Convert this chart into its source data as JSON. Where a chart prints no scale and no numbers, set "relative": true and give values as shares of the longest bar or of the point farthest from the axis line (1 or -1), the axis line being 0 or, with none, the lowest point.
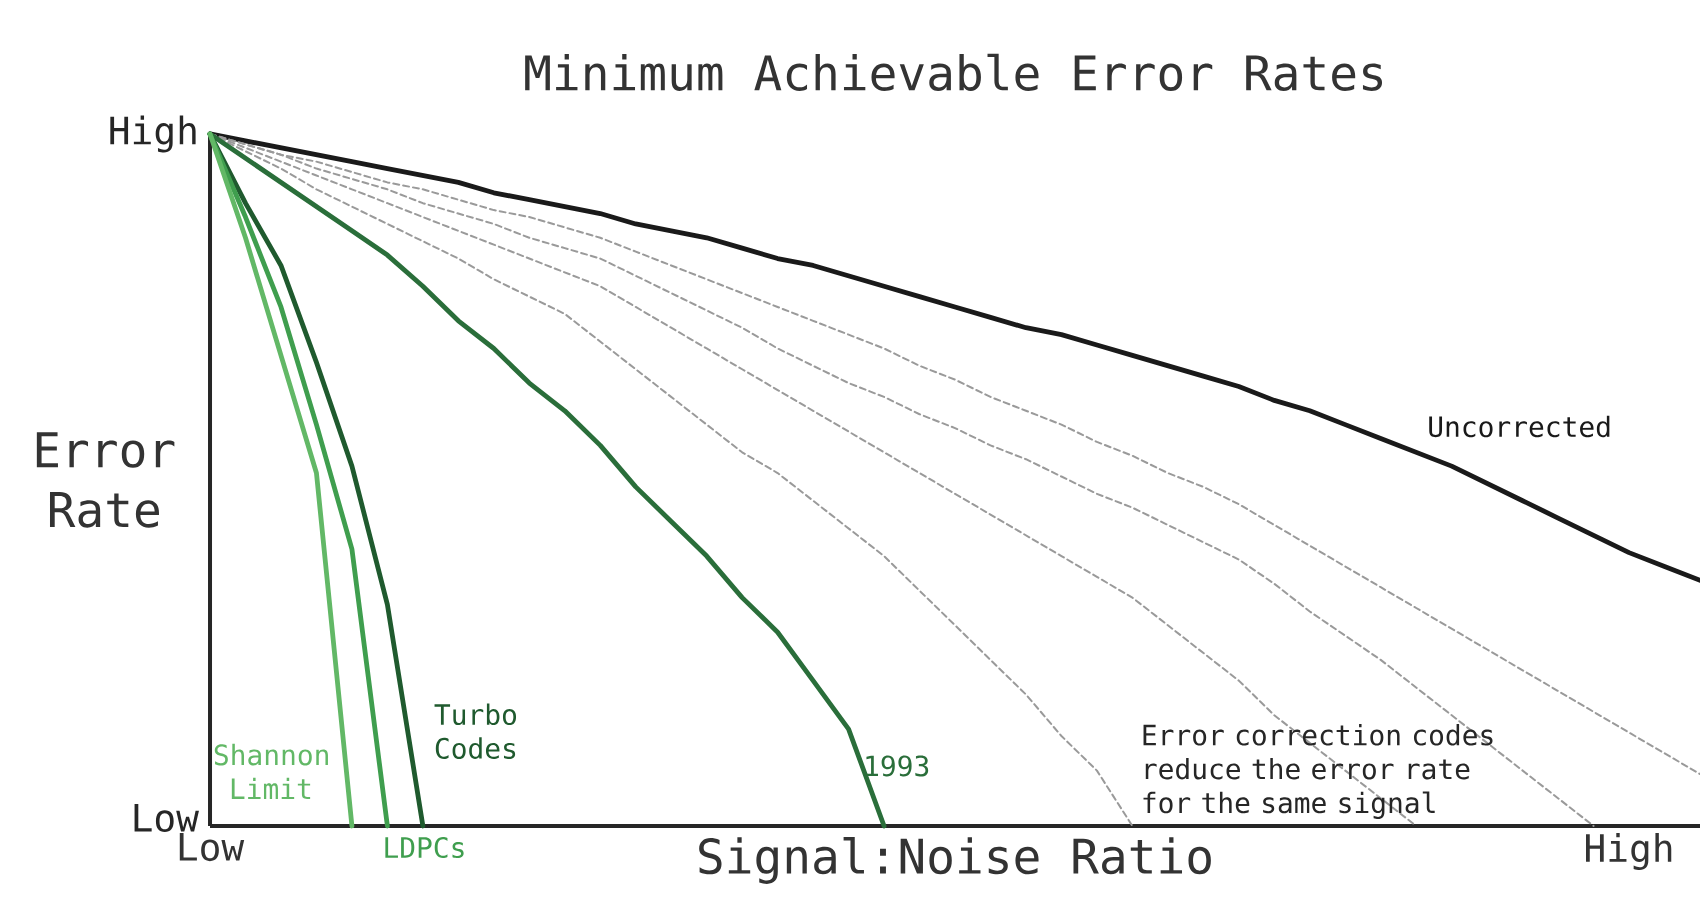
{
  "chart_data": {
    "type": "line",
    "title": "Minimum Achievable Error Rates",
    "xlabel": "Signal:Noise Ratio",
    "ylabel": "Error Rate",
    "relative": true,
    "legend": false,
    "marker": "none",
    "annotations": [
      "High",
      "Low",
      "Error correction codes reduce the error rate for the same signal"
    ],
    "categories": [
      "Low",
      null,
      null,
      null,
      null,
      null,
      null,
      null,
      null,
      null,
      null,
      null,
      null,
      null,
      null,
      null,
      null,
      null,
      null,
      null,
      null,
      null,
      null,
      null,
      null,
      null,
      null,
      null,
      null,
      null,
      null,
      null,
      null,
      null,
      null,
      null,
      null,
      null,
      null,
      null,
      "High",
      null,
      null
    ],
    "series": [
      {
        "name": "Uncorrected",
        "color": "#1a1a1a",
        "line_style": "solid",
        "values": [
          1,
          0.99,
          0.98,
          0.97,
          0.96,
          0.95,
          0.94,
          0.93,
          0.915,
          0.905,
          0.895,
          0.885,
          0.87,
          0.86,
          0.85,
          0.835,
          0.82,
          0.81,
          0.795,
          0.78,
          0.765,
          0.75,
          0.735,
          0.72,
          0.71,
          0.695,
          0.68,
          0.665,
          0.65,
          0.635,
          0.615,
          0.6,
          0.58,
          0.56,
          0.54,
          0.52,
          0.495,
          0.47,
          0.445,
          0.42,
          0.395,
          0.375,
          0.355
        ]
      },
      {
        "color": "#9a9a9a",
        "line_style": "dashed",
        "values": [
          1,
          0.985,
          0.97,
          0.96,
          0.945,
          0.93,
          0.92,
          0.905,
          0.89,
          0.88,
          0.865,
          0.85,
          0.83,
          0.81,
          0.79,
          0.77,
          0.75,
          0.73,
          0.71,
          0.69,
          0.665,
          0.645,
          0.62,
          0.6,
          0.58,
          0.555,
          0.535,
          0.51,
          0.49,
          0.465,
          0.435,
          0.405,
          0.375,
          0.345,
          0.315,
          0.285,
          0.255,
          0.225,
          0.195,
          0.165,
          0.135,
          0.105,
          0.075
        ]
      },
      {
        "color": "#9a9a9a",
        "line_style": "dashed",
        "values": [
          1,
          0.985,
          0.97,
          0.95,
          0.935,
          0.92,
          0.9,
          0.885,
          0.87,
          0.85,
          0.835,
          0.82,
          0.795,
          0.77,
          0.745,
          0.72,
          0.69,
          0.665,
          0.64,
          0.62,
          0.595,
          0.575,
          0.55,
          0.53,
          0.505,
          0.48,
          0.46,
          0.435,
          0.41,
          0.385,
          0.35,
          0.31,
          0.275,
          0.24,
          0.2,
          0.16,
          0.12,
          0.08,
          0.04,
          0,
          null,
          null,
          null
        ]
      },
      {
        "color": "#9a9a9a",
        "line_style": "dashed",
        "values": [
          1,
          0.98,
          0.96,
          0.94,
          0.92,
          0.9,
          0.88,
          0.86,
          0.84,
          0.82,
          0.8,
          0.78,
          0.75,
          0.72,
          0.69,
          0.66,
          0.63,
          0.6,
          0.57,
          0.54,
          0.51,
          0.48,
          0.45,
          0.42,
          0.39,
          0.36,
          0.33,
          0.29,
          0.25,
          0.21,
          0.16,
          0.12,
          0.08,
          0.04,
          0,
          null,
          null,
          null,
          null,
          null,
          null,
          null,
          null
        ]
      },
      {
        "color": "#9a9a9a",
        "line_style": "dashed",
        "values": [
          1,
          0.975,
          0.95,
          0.92,
          0.895,
          0.87,
          0.845,
          0.82,
          0.79,
          0.765,
          0.74,
          0.7,
          0.66,
          0.62,
          0.58,
          0.54,
          0.51,
          0.47,
          0.43,
          0.39,
          0.34,
          0.29,
          0.24,
          0.19,
          0.13,
          0.08,
          0,
          null,
          null,
          null,
          null,
          null,
          null,
          null,
          null,
          null,
          null,
          null,
          null,
          null,
          null,
          null,
          null
        ]
      },
      {
        "name": "1993",
        "color": "#2a6e3a",
        "line_style": "solid",
        "values": [
          1,
          0.965,
          0.93,
          0.895,
          0.86,
          0.825,
          0.78,
          0.73,
          0.69,
          0.64,
          0.6,
          0.55,
          0.49,
          0.44,
          0.39,
          0.33,
          0.28,
          0.21,
          0.14,
          0,
          null,
          null,
          null,
          null,
          null,
          null,
          null,
          null,
          null,
          null,
          null,
          null,
          null,
          null,
          null,
          null,
          null,
          null,
          null,
          null,
          null,
          null,
          null
        ]
      },
      {
        "name": "Turbo Codes",
        "color": "#1f5a2e",
        "line_style": "solid",
        "values": [
          1,
          0.9,
          0.81,
          0.67,
          0.52,
          0.32,
          0,
          null,
          null,
          null,
          null,
          null,
          null,
          null,
          null,
          null,
          null,
          null,
          null,
          null,
          null,
          null,
          null,
          null,
          null,
          null,
          null,
          null,
          null,
          null,
          null,
          null,
          null,
          null,
          null,
          null,
          null,
          null,
          null,
          null,
          null,
          null,
          null
        ]
      },
      {
        "name": "LDPCs",
        "color": "#3f9e4e",
        "line_style": "solid",
        "values": [
          1,
          0.88,
          0.75,
          0.58,
          0.4,
          0,
          null,
          null,
          null,
          null,
          null,
          null,
          null,
          null,
          null,
          null,
          null,
          null,
          null,
          null,
          null,
          null,
          null,
          null,
          null,
          null,
          null,
          null,
          null,
          null,
          null,
          null,
          null,
          null,
          null,
          null,
          null,
          null,
          null,
          null,
          null,
          null,
          null
        ]
      },
      {
        "name": "Shannon Limit",
        "color": "#62b866",
        "line_style": "solid",
        "values": [
          1,
          0.85,
          0.68,
          0.51,
          0,
          null,
          null,
          null,
          null,
          null,
          null,
          null,
          null,
          null,
          null,
          null,
          null,
          null,
          null,
          null,
          null,
          null,
          null,
          null,
          null,
          null,
          null,
          null,
          null,
          null,
          null,
          null,
          null,
          null,
          null,
          null,
          null,
          null,
          null,
          null,
          null,
          null,
          null
        ]
      }
    ]
  }
}
